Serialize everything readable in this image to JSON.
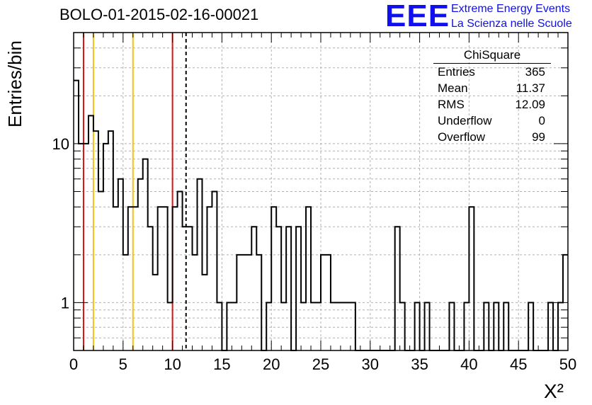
{
  "chart_data": {
    "type": "histogram",
    "title": "BOLO-01-2015-02-16-00021",
    "xlabel": "X²",
    "ylabel": "Entries/bin",
    "xlim": [
      0,
      50
    ],
    "ylim": [
      0.5,
      50
    ],
    "y_scale": "log",
    "grid": true,
    "bin_width": 0.5,
    "x_ticks": [
      "0",
      "5",
      "10",
      "15",
      "20",
      "25",
      "30",
      "35",
      "40",
      "45",
      "50"
    ],
    "y_ticks": [
      "1",
      "10"
    ],
    "bin_counts": [
      25,
      10,
      10,
      15,
      12,
      5,
      10,
      12,
      4,
      6,
      2,
      4,
      4,
      6,
      8,
      3,
      1.5,
      4,
      4,
      1,
      4,
      5,
      3,
      3,
      2,
      6,
      1.5,
      4,
      5,
      1,
      0,
      1,
      1,
      2,
      2,
      2,
      3,
      2,
      0,
      1,
      4,
      3,
      1,
      3,
      0,
      3,
      1,
      4,
      1,
      1,
      2,
      2,
      1,
      1,
      1,
      1,
      1,
      0,
      0,
      0,
      0,
      0,
      0,
      0,
      0,
      3,
      1,
      0,
      0,
      1,
      0,
      1,
      0,
      0,
      0,
      0,
      1,
      0,
      0,
      1,
      4,
      0,
      0,
      1,
      0,
      1,
      0,
      1,
      0,
      0,
      0,
      0,
      1,
      0,
      0,
      0,
      1,
      0,
      1,
      2
    ],
    "reference_lines": [
      {
        "x": 1,
        "color": "#dd1111",
        "style": "solid"
      },
      {
        "x": 2,
        "color": "#f2c20e",
        "style": "solid"
      },
      {
        "x": 6,
        "color": "#f2c20e",
        "style": "solid"
      },
      {
        "x": 10,
        "color": "#dd1111",
        "style": "solid"
      },
      {
        "x": 11.37,
        "color": "#000000",
        "style": "dashed"
      }
    ],
    "stats_box": {
      "title": "ChiSquare",
      "entries": [
        {
          "label": "Entries",
          "value": "365"
        },
        {
          "label": "Mean",
          "value": "11.37"
        },
        {
          "label": "RMS",
          "value": "12.09"
        },
        {
          "label": "Underflow",
          "value": "0"
        },
        {
          "label": "Overflow",
          "value": "99"
        }
      ]
    }
  },
  "logo": {
    "mark": "EEE",
    "line1": "Extreme Energy Events",
    "line2": "La Scienza nelle Scuole",
    "color": "#1010ee"
  }
}
